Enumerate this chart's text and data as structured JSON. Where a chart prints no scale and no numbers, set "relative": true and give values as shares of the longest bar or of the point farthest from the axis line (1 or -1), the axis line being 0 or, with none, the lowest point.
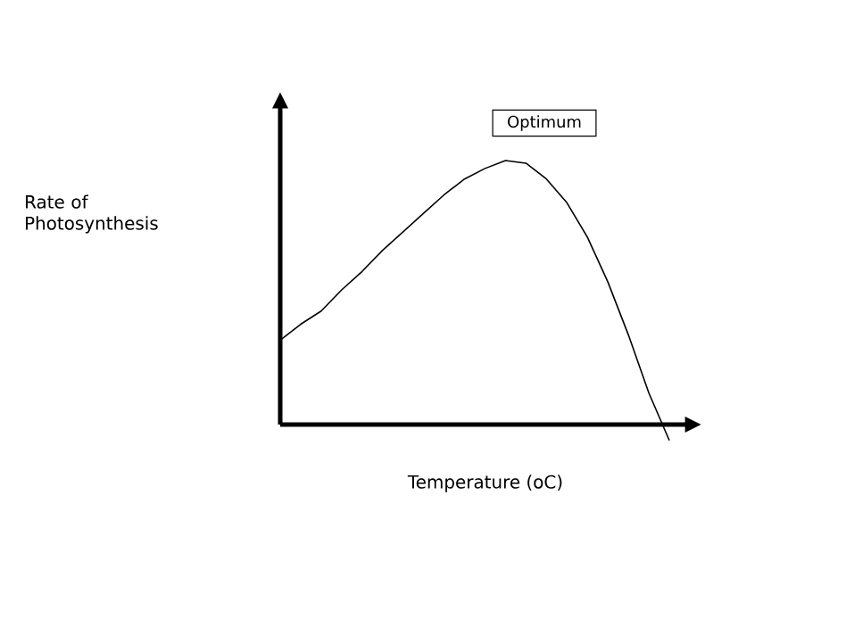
{
  "chart_data": {
    "type": "line",
    "relative": true,
    "xlabel": "Temperature (oC)",
    "categories": [
      null,
      null,
      null,
      null,
      null,
      null,
      null,
      null,
      null,
      null,
      null,
      null,
      null,
      null,
      null,
      null,
      null,
      null,
      null,
      null
    ],
    "series": [
      {
        "color": "#000000",
        "values": [
          0.32,
          0.38,
          0.43,
          0.51,
          0.58,
          0.66,
          0.73,
          0.8,
          0.87,
          0.93,
          0.97,
          1.0,
          0.99,
          0.93,
          0.84,
          0.71,
          0.54,
          0.34,
          0.12,
          -0.06
        ]
      }
    ],
    "annotations": [
      "Optimum",
      "Rate of Photosynthesis"
    ],
    "marker": "none",
    "line_style": "solid"
  }
}
